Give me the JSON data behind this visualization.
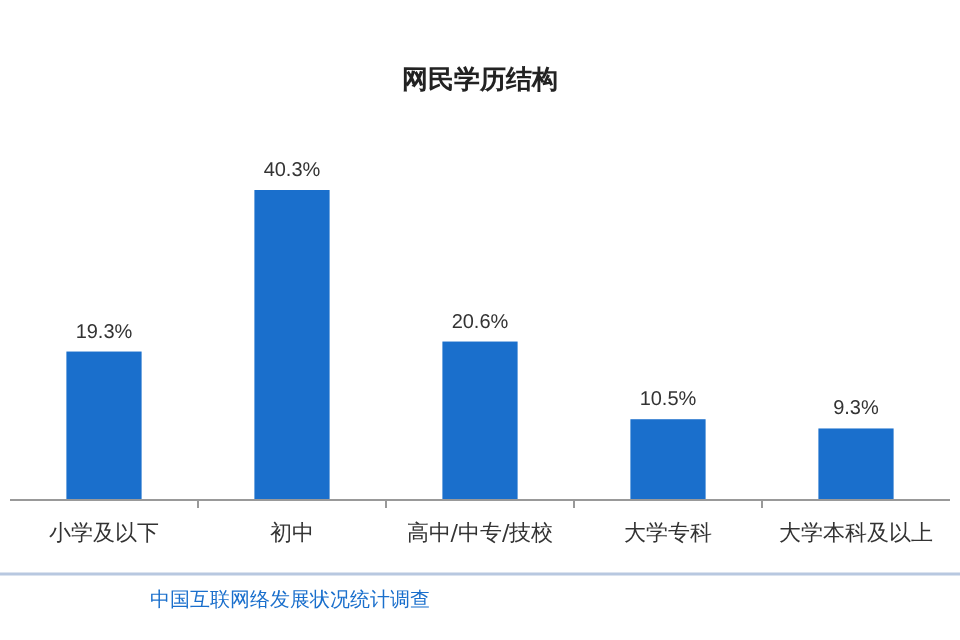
{
  "chart_data": {
    "type": "bar",
    "title": "网民学历结构",
    "categories": [
      "小学及以下",
      "初中",
      "高中/中专/技校",
      "大学专科",
      "大学本科及以上"
    ],
    "values": [
      19.3,
      40.3,
      20.6,
      10.5,
      9.3
    ],
    "value_labels": [
      "19.3%",
      "40.3%",
      "20.6%",
      "10.5%",
      "9.3%"
    ],
    "color": "#1a6fcc",
    "annotations": [
      "中国互联网络发展状况统计调查"
    ]
  }
}
